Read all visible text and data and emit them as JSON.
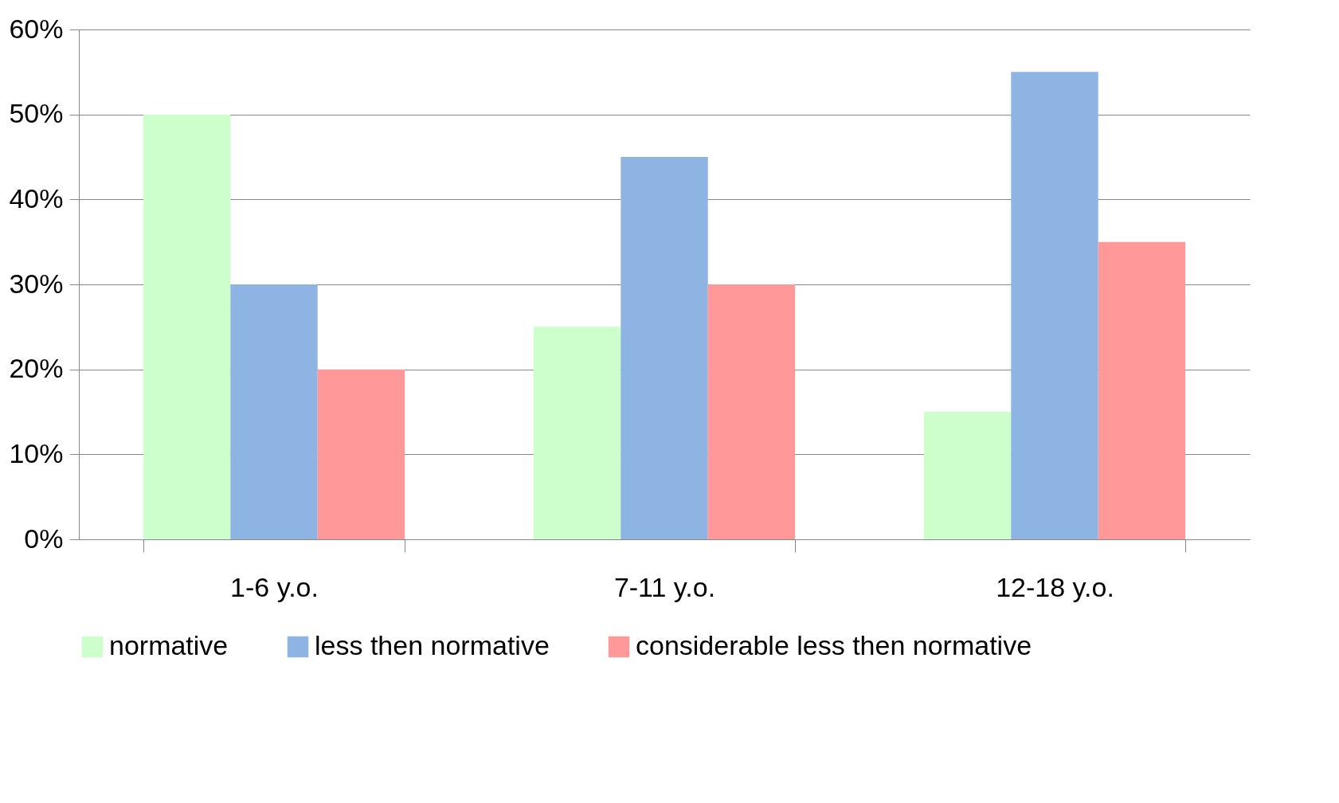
{
  "chart_data": {
    "type": "bar",
    "categories": [
      "1-6 y.o.",
      "7-11 y.o.",
      "12-18 y.o."
    ],
    "series": [
      {
        "name": "normative",
        "color": "#ccffcc",
        "values": [
          50,
          25,
          15
        ]
      },
      {
        "name": "less then normative",
        "color": "#8eb4e3",
        "values": [
          30,
          45,
          55
        ]
      },
      {
        "name": "considerable less then normative",
        "color": "#ff9999",
        "values": [
          20,
          30,
          35
        ]
      }
    ],
    "ylim": [
      0,
      60
    ],
    "yticks": [
      {
        "value": 0,
        "label": "0%"
      },
      {
        "value": 10,
        "label": "10%"
      },
      {
        "value": 20,
        "label": "20%"
      },
      {
        "value": 30,
        "label": "30%"
      },
      {
        "value": 40,
        "label": "40%"
      },
      {
        "value": 50,
        "label": "50%"
      },
      {
        "value": 60,
        "label": "60%"
      }
    ],
    "grid": "y",
    "legend": "bottom"
  }
}
